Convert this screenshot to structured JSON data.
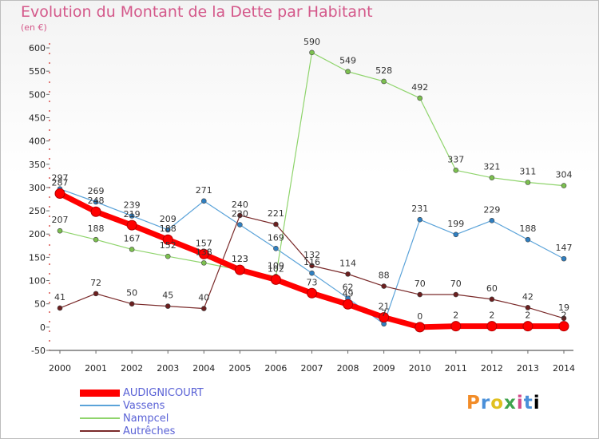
{
  "header": {
    "title": "Evolution du Montant de la Dette par Habitant",
    "unit": "(en €)"
  },
  "logo": {
    "letters": [
      "P",
      "r",
      "o",
      "x",
      "i",
      "t",
      "i"
    ]
  },
  "chart_data": {
    "type": "line",
    "title": "Evolution du Montant de la Dette par Habitant",
    "ylabel": "(en €)",
    "ylim": [
      -50,
      600
    ],
    "yticks": [
      -50,
      0,
      50,
      100,
      150,
      200,
      250,
      300,
      350,
      400,
      450,
      500,
      550,
      600
    ],
    "categories": [
      "2000",
      "2001",
      "2002",
      "2003",
      "2004",
      "2005",
      "2006",
      "2007",
      "2008",
      "2009",
      "2010",
      "2011",
      "2012",
      "2013",
      "2014"
    ],
    "grid": false,
    "legend_position": "bottom-left",
    "series": [
      {
        "name": "AUDIGNICOURT",
        "color": "#ff0000",
        "width": 7,
        "values": [
          287,
          248,
          219,
          188,
          157,
          123,
          102,
          73,
          49,
          21,
          0,
          2,
          2,
          2,
          2
        ],
        "labels": [
          "287",
          "248",
          "219",
          "188",
          "157",
          "123",
          "102",
          "73",
          "49",
          "21",
          "0",
          "2",
          "2",
          "2",
          "2"
        ]
      },
      {
        "name": "Vassens",
        "color": "#5ba3d9",
        "width": 1.2,
        "values": [
          297,
          269,
          239,
          209,
          271,
          220,
          169,
          116,
          62,
          7,
          231,
          199,
          229,
          188,
          147
        ],
        "labels": [
          "297",
          "269",
          "239",
          "209",
          "271",
          "220",
          "169",
          "116",
          "62",
          "7",
          "231",
          "199",
          "229",
          "188",
          "147"
        ]
      },
      {
        "name": "Nampcel",
        "color": "#8fd46c",
        "width": 1.2,
        "values": [
          207,
          188,
          167,
          152,
          138,
          123,
          109,
          590,
          549,
          528,
          492,
          337,
          321,
          311,
          304
        ],
        "labels": [
          "207",
          "188",
          "167",
          "152",
          "138",
          "123",
          "109",
          "590",
          "549",
          "528",
          "492",
          "337",
          "321",
          "311",
          "304"
        ]
      },
      {
        "name": "Autrêches",
        "color": "#7a2a2a",
        "width": 1.2,
        "values": [
          41,
          72,
          50,
          45,
          40,
          240,
          221,
          132,
          114,
          88,
          70,
          70,
          60,
          42,
          19
        ],
        "labels": [
          "41",
          "72",
          "50",
          "45",
          "40",
          "240",
          "221",
          "132",
          "114",
          "88",
          "70",
          "70",
          "60",
          "42",
          "19"
        ]
      }
    ]
  }
}
